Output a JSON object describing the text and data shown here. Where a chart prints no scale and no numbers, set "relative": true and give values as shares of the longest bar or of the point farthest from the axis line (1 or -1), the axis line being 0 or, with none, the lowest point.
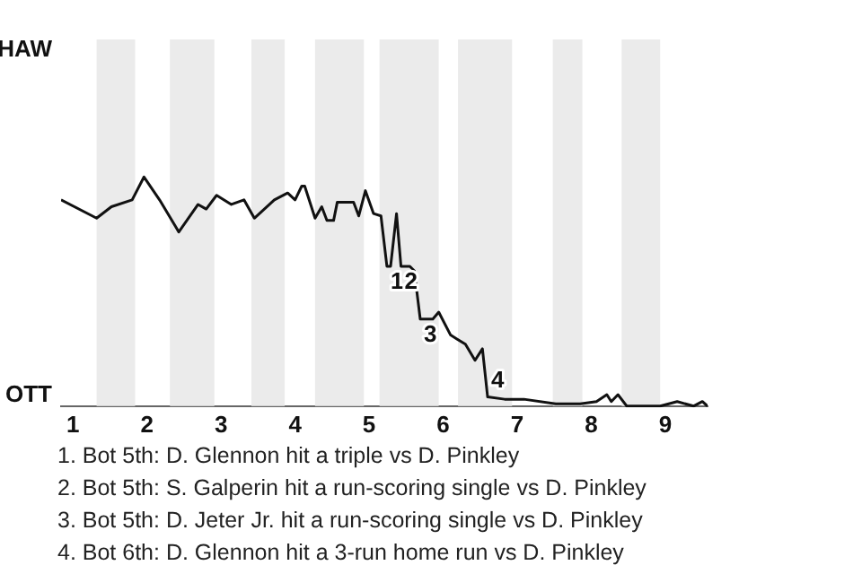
{
  "chart_data": {
    "type": "line",
    "relative": true,
    "x": [
      0.84,
      1.32,
      1.52,
      1.8,
      1.96,
      2.17,
      2.43,
      2.69,
      2.8,
      2.94,
      3.14,
      3.31,
      3.45,
      3.72,
      3.9,
      4,
      4.09,
      4.13,
      4.27,
      4.36,
      4.43,
      4.52,
      4.57,
      4.79,
      4.86,
      4.95,
      5.06,
      5.16,
      5.24,
      5.29,
      5.37,
      5.43,
      5.55,
      5.61,
      5.69,
      5.86,
      5.94,
      6.1,
      6.3,
      6.43,
      6.53,
      6.6,
      6.83,
      7.09,
      7.52,
      7.85,
      8.07,
      8.21,
      8.27,
      8.36,
      8.48,
      8.93,
      9.16,
      9.38,
      9.5,
      9.57
    ],
    "series": [
      {
        "color": "#111111",
        "values": [
          0.9,
          0.82,
          0.87,
          0.9,
          1,
          0.9,
          0.76,
          0.88,
          0.86,
          0.92,
          0.88,
          0.9,
          0.82,
          0.9,
          0.93,
          0.9,
          0.96,
          0.96,
          0.82,
          0.87,
          0.81,
          0.81,
          0.89,
          0.89,
          0.83,
          0.94,
          0.84,
          0.83,
          0.61,
          0.61,
          0.84,
          0.61,
          0.61,
          0.59,
          0.38,
          0.38,
          0.41,
          0.31,
          0.27,
          0.2,
          0.25,
          0.04,
          0.03,
          0.03,
          0.01,
          0.01,
          0.02,
          0.05,
          0.02,
          0.05,
          0,
          0,
          0.02,
          0,
          0.02,
          0
        ]
      }
    ],
    "xlim": [
      0.84,
      9.57
    ],
    "xticks": [
      1,
      2,
      3,
      4,
      5,
      6,
      7,
      8,
      9
    ],
    "marker": "none",
    "line_style": "solid",
    "legend": false,
    "bands": [
      {
        "axis": "x",
        "from": 1.32,
        "to": 1.84,
        "color": "#ebebeb"
      },
      {
        "axis": "x",
        "from": 2.31,
        "to": 2.91,
        "color": "#ebebeb"
      },
      {
        "axis": "x",
        "from": 3.41,
        "to": 3.86,
        "color": "#ebebeb"
      },
      {
        "axis": "x",
        "from": 4.27,
        "to": 4.93,
        "color": "#ebebeb"
      },
      {
        "axis": "x",
        "from": 5.14,
        "to": 5.94,
        "color": "#ebebeb"
      },
      {
        "axis": "x",
        "from": 6.2,
        "to": 6.93,
        "color": "#ebebeb"
      },
      {
        "axis": "x",
        "from": 7.48,
        "to": 7.88,
        "color": "#ebebeb"
      },
      {
        "axis": "x",
        "from": 8.41,
        "to": 8.93,
        "color": "#ebebeb"
      }
    ],
    "annotations": [
      "HAW",
      "OTT",
      {
        "text": "1",
        "x": 5.24,
        "y": 0.61
      },
      {
        "text": "2",
        "x": 5.43,
        "y": 0.61
      },
      {
        "text": "3",
        "x": 5.69,
        "y": 0.38
      },
      {
        "text": "4",
        "x": 6.6,
        "y": 0.04
      },
      "1. Bot 5th: D. Glennon hit a triple vs D. Pinkley",
      "2. Bot 5th: S. Galperin hit a run-scoring single vs D. Pinkley",
      "3. Bot 5th: D. Jeter Jr. hit a run-scoring single vs D. Pinkley",
      "4. Bot 6th: D. Glennon hit a 3-run home run vs D. Pinkley"
    ]
  }
}
